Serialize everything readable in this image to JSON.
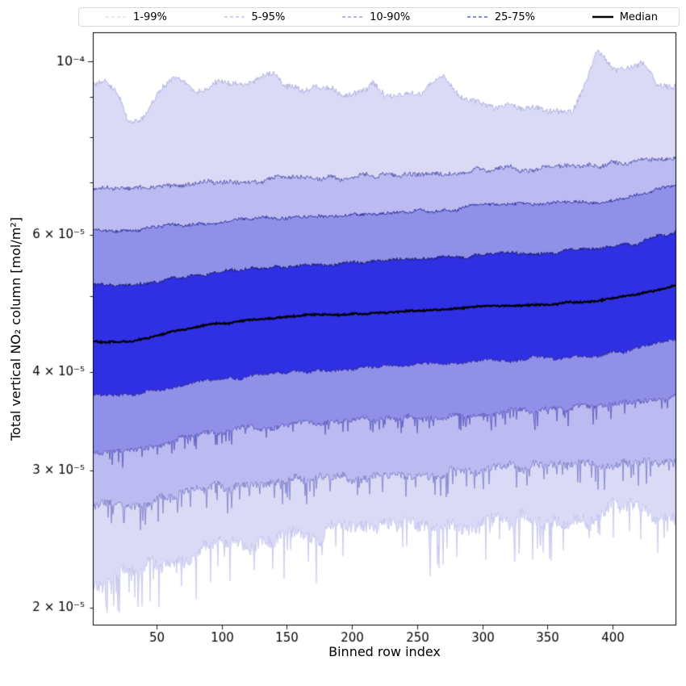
{
  "chart_data": {
    "type": "area",
    "subtype": "percentile-fan",
    "title": "",
    "xlabel": "Binned row index",
    "ylabel": "Total vertical NO₂ column [mol/m²]",
    "x_range": [
      1,
      449
    ],
    "y_scale": "log",
    "y_range": [
      1.9e-05,
      0.0001088
    ],
    "x_ticks": [
      50,
      100,
      150,
      200,
      250,
      300,
      350,
      400
    ],
    "y_ticks_major": [
      {
        "value": 0.0001,
        "label": "10⁻⁴"
      }
    ],
    "y_ticks_minor_labeled": [
      {
        "value": 6e-05,
        "label": "6 × 10⁻⁵"
      },
      {
        "value": 4e-05,
        "label": "4 × 10⁻⁵"
      },
      {
        "value": 3e-05,
        "label": "3 × 10⁻⁵"
      },
      {
        "value": 2e-05,
        "label": "2 × 10⁻⁵"
      }
    ],
    "y_ticks_minor": [
      2e-05,
      3e-05,
      4e-05,
      5e-05,
      6e-05,
      7e-05,
      8e-05,
      9e-05
    ],
    "legend_position": "top",
    "legend": [
      {
        "label": "1-99%",
        "color": "#d9d9f6",
        "dash": "4,3",
        "lw": 1.3
      },
      {
        "label": "5-95%",
        "color": "#b9b9f0",
        "dash": "4,3",
        "lw": 1.3
      },
      {
        "label": "10-90%",
        "color": "#8f8fe8",
        "dash": "4,3",
        "lw": 1.3
      },
      {
        "label": "25-75%",
        "color": "#4040dd",
        "dash": "4,3",
        "lw": 1.3
      },
      {
        "label": "Median",
        "color": "#000000",
        "dash": "",
        "lw": 2.6
      }
    ],
    "bands": [
      {
        "name": "1-99%",
        "lower": "p1",
        "upper": "p99",
        "fill": "#dadaf7",
        "edge": "#a8a8e0"
      },
      {
        "name": "5-95%",
        "lower": "p5",
        "upper": "p95",
        "fill": "#bbbbf1",
        "edge": "#4646a6"
      },
      {
        "name": "10-90%",
        "lower": "p10",
        "upper": "p90",
        "fill": "#9090e9",
        "edge": "#202090"
      },
      {
        "name": "25-75%",
        "lower": "p25",
        "upper": "p75",
        "fill": "#2f2fe3",
        "edge": "#14145a"
      }
    ],
    "median_series": "median",
    "median_color": "#000000",
    "series_unit": 1e-05,
    "series": {
      "p99": {
        "jitter": 0.015,
        "spiky": false,
        "points": [
          [
            1,
            9.4
          ],
          [
            10,
            9.35
          ],
          [
            20,
            9.1
          ],
          [
            28,
            8.4
          ],
          [
            38,
            8.45
          ],
          [
            50,
            9.0
          ],
          [
            62,
            9.55
          ],
          [
            70,
            9.5
          ],
          [
            80,
            9.15
          ],
          [
            95,
            9.3
          ],
          [
            105,
            9.45
          ],
          [
            118,
            9.3
          ],
          [
            130,
            9.5
          ],
          [
            140,
            9.65
          ],
          [
            150,
            9.35
          ],
          [
            162,
            9.1
          ],
          [
            172,
            9.25
          ],
          [
            185,
            9.2
          ],
          [
            196,
            9.1
          ],
          [
            206,
            9.2
          ],
          [
            216,
            9.3
          ],
          [
            226,
            9.05
          ],
          [
            238,
            9.0
          ],
          [
            250,
            9.1
          ],
          [
            262,
            9.35
          ],
          [
            270,
            9.5
          ],
          [
            282,
            9.05
          ],
          [
            295,
            8.95
          ],
          [
            308,
            8.75
          ],
          [
            320,
            8.8
          ],
          [
            332,
            8.65
          ],
          [
            345,
            8.75
          ],
          [
            358,
            8.6
          ],
          [
            370,
            8.65
          ],
          [
            380,
            9.4
          ],
          [
            388,
            10.3
          ],
          [
            396,
            10.0
          ],
          [
            405,
            9.7
          ],
          [
            415,
            9.8
          ],
          [
            424,
            9.95
          ],
          [
            434,
            9.4
          ],
          [
            449,
            9.25
          ]
        ]
      },
      "p95": {
        "jitter": 0.012,
        "spiky": false,
        "points": [
          [
            1,
            6.9
          ],
          [
            30,
            6.85
          ],
          [
            60,
            6.95
          ],
          [
            90,
            7.0
          ],
          [
            120,
            7.05
          ],
          [
            150,
            7.08
          ],
          [
            180,
            7.08
          ],
          [
            210,
            7.12
          ],
          [
            240,
            7.18
          ],
          [
            270,
            7.2
          ],
          [
            300,
            7.25
          ],
          [
            330,
            7.28
          ],
          [
            360,
            7.3
          ],
          [
            390,
            7.35
          ],
          [
            420,
            7.45
          ],
          [
            449,
            7.5
          ]
        ]
      },
      "p90": {
        "jitter": 0.009,
        "spiky": false,
        "points": [
          [
            1,
            6.1
          ],
          [
            30,
            6.05
          ],
          [
            60,
            6.15
          ],
          [
            90,
            6.2
          ],
          [
            120,
            6.28
          ],
          [
            150,
            6.3
          ],
          [
            180,
            6.3
          ],
          [
            210,
            6.36
          ],
          [
            240,
            6.42
          ],
          [
            270,
            6.45
          ],
          [
            300,
            6.52
          ],
          [
            330,
            6.55
          ],
          [
            360,
            6.58
          ],
          [
            390,
            6.62
          ],
          [
            420,
            6.75
          ],
          [
            449,
            6.9
          ]
        ]
      },
      "p75": {
        "jitter": 0.008,
        "spiky": false,
        "points": [
          [
            1,
            5.18
          ],
          [
            30,
            5.16
          ],
          [
            60,
            5.28
          ],
          [
            90,
            5.35
          ],
          [
            120,
            5.42
          ],
          [
            150,
            5.47
          ],
          [
            180,
            5.5
          ],
          [
            210,
            5.53
          ],
          [
            240,
            5.57
          ],
          [
            270,
            5.6
          ],
          [
            300,
            5.65
          ],
          [
            330,
            5.68
          ],
          [
            360,
            5.7
          ],
          [
            390,
            5.74
          ],
          [
            420,
            5.86
          ],
          [
            449,
            6.05
          ]
        ]
      },
      "median": {
        "jitter": 0.004,
        "spiky": false,
        "points": [
          [
            1,
            4.38
          ],
          [
            30,
            4.38
          ],
          [
            60,
            4.5
          ],
          [
            90,
            4.6
          ],
          [
            120,
            4.66
          ],
          [
            150,
            4.71
          ],
          [
            180,
            4.74
          ],
          [
            210,
            4.76
          ],
          [
            240,
            4.79
          ],
          [
            270,
            4.82
          ],
          [
            300,
            4.86
          ],
          [
            330,
            4.88
          ],
          [
            360,
            4.9
          ],
          [
            390,
            4.93
          ],
          [
            420,
            5.03
          ],
          [
            449,
            5.18
          ]
        ]
      },
      "p25": {
        "jitter": 0.008,
        "spiky": false,
        "points": [
          [
            1,
            3.74
          ],
          [
            30,
            3.73
          ],
          [
            60,
            3.83
          ],
          [
            90,
            3.9
          ],
          [
            120,
            3.95
          ],
          [
            150,
            4.0
          ],
          [
            180,
            4.02
          ],
          [
            210,
            4.05
          ],
          [
            240,
            4.08
          ],
          [
            270,
            4.1
          ],
          [
            300,
            4.14
          ],
          [
            330,
            4.16
          ],
          [
            360,
            4.18
          ],
          [
            390,
            4.21
          ],
          [
            420,
            4.29
          ],
          [
            449,
            4.4
          ]
        ]
      },
      "p10": {
        "jitter": 0.014,
        "spiky": true,
        "points": [
          [
            1,
            3.18
          ],
          [
            30,
            3.18
          ],
          [
            60,
            3.28
          ],
          [
            90,
            3.34
          ],
          [
            120,
            3.38
          ],
          [
            150,
            3.42
          ],
          [
            180,
            3.45
          ],
          [
            210,
            3.47
          ],
          [
            240,
            3.5
          ],
          [
            270,
            3.52
          ],
          [
            300,
            3.55
          ],
          [
            330,
            3.57
          ],
          [
            360,
            3.58
          ],
          [
            390,
            3.61
          ],
          [
            420,
            3.66
          ],
          [
            449,
            3.72
          ]
        ]
      },
      "p5": {
        "jitter": 0.02,
        "spiky": true,
        "points": [
          [
            1,
            2.7
          ],
          [
            30,
            2.7
          ],
          [
            60,
            2.79
          ],
          [
            90,
            2.84
          ],
          [
            120,
            2.87
          ],
          [
            150,
            2.9
          ],
          [
            180,
            2.92
          ],
          [
            210,
            2.94
          ],
          [
            240,
            2.96
          ],
          [
            270,
            2.98
          ],
          [
            300,
            3.0
          ],
          [
            330,
            3.02
          ],
          [
            360,
            3.03
          ],
          [
            390,
            3.05
          ],
          [
            420,
            3.08
          ],
          [
            449,
            3.04
          ]
        ]
      },
      "p1": {
        "jitter": 0.035,
        "spiky": true,
        "points": [
          [
            1,
            2.14
          ],
          [
            30,
            2.22
          ],
          [
            60,
            2.32
          ],
          [
            90,
            2.38
          ],
          [
            120,
            2.42
          ],
          [
            150,
            2.46
          ],
          [
            180,
            2.48
          ],
          [
            210,
            2.5
          ],
          [
            240,
            2.53
          ],
          [
            270,
            2.55
          ],
          [
            300,
            2.57
          ],
          [
            330,
            2.59
          ],
          [
            360,
            2.61
          ],
          [
            390,
            2.63
          ],
          [
            410,
            2.76
          ],
          [
            430,
            2.66
          ],
          [
            449,
            2.58
          ]
        ]
      }
    },
    "grid": false,
    "background": "#ffffff",
    "spine_color": "#000000"
  }
}
